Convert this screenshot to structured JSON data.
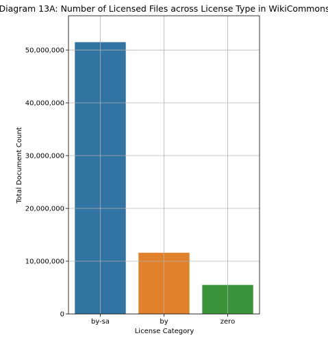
{
  "chart_data": {
    "type": "bar",
    "title": "Diagram 13A: Number of Licensed Files across License Type in WikiCommons",
    "xlabel": "License Category",
    "ylabel": "Total Document Count",
    "categories": [
      "by-sa",
      "by",
      "zero"
    ],
    "values": [
      51500000,
      11600000,
      5500000
    ],
    "colors": [
      "#3274a1",
      "#e1812c",
      "#3a923a"
    ],
    "ylim": [
      0,
      56500000
    ],
    "yticks": [
      0,
      10000000,
      20000000,
      30000000,
      40000000,
      50000000
    ],
    "ytick_labels": [
      "0",
      "10,000,000",
      "20,000,000",
      "30,000,000",
      "40,000,000",
      "50,000,000"
    ],
    "grid": true,
    "legend": "none"
  }
}
